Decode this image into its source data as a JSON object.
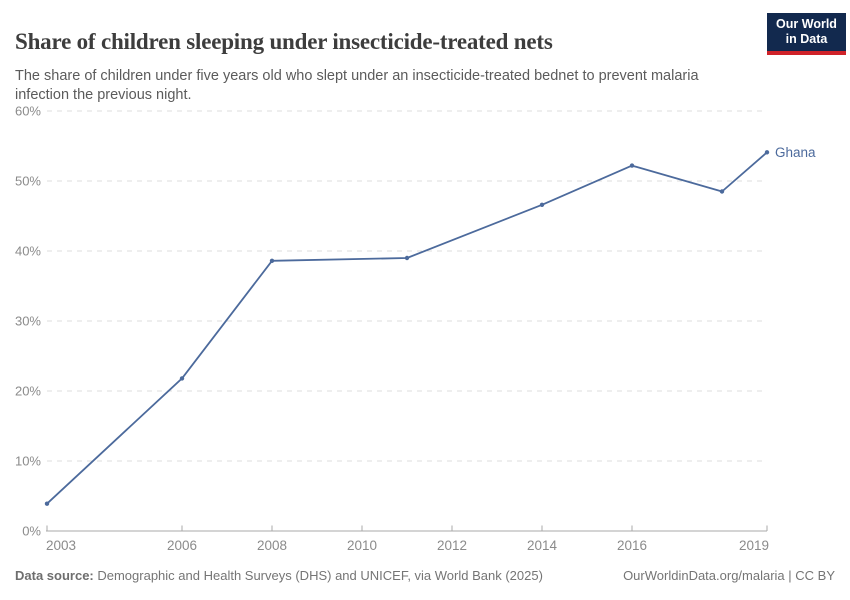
{
  "header": {
    "title": "Share of children sleeping under insecticide-treated nets",
    "subtitle": "The share of children under five years old who slept under an insecticide-treated bednet to prevent malaria infection the previous night."
  },
  "logo": {
    "line1": "Our World",
    "line2": "in Data"
  },
  "chart_data": {
    "type": "line",
    "title": "Share of children sleeping under insecticide-treated nets",
    "xlabel": "",
    "ylabel": "",
    "xlim": [
      2003,
      2019
    ],
    "ylim": [
      0,
      60
    ],
    "x_ticks": [
      2003,
      2006,
      2008,
      2010,
      2012,
      2014,
      2016,
      2019
    ],
    "y_ticks": [
      0,
      10,
      20,
      30,
      40,
      50,
      60
    ],
    "y_tick_suffix": "%",
    "grid": "horizontal-dashed",
    "legend_position": "end-of-line-label",
    "series": [
      {
        "name": "Ghana",
        "points": [
          {
            "year": 2003,
            "value": 3.9
          },
          {
            "year": 2006,
            "value": 21.8
          },
          {
            "year": 2008,
            "value": 38.6
          },
          {
            "year": 2011,
            "value": 39.0
          },
          {
            "year": 2014,
            "value": 46.6
          },
          {
            "year": 2016,
            "value": 52.2
          },
          {
            "year": 2018,
            "value": 48.5
          },
          {
            "year": 2019,
            "value": 54.1
          }
        ]
      }
    ]
  },
  "footer": {
    "source_label": "Data source:",
    "source_text": " Demographic and Health Surveys (DHS) and UNICEF, via World Bank (2025)",
    "attribution": "OurWorldinData.org/malaria | CC BY"
  },
  "colors": {
    "line": "#4c6a9c",
    "grid": "#dcdcdc",
    "axis": "#a8a8a8",
    "tick_label": "#8b8b8b",
    "end_label": "#4c6a9c"
  }
}
